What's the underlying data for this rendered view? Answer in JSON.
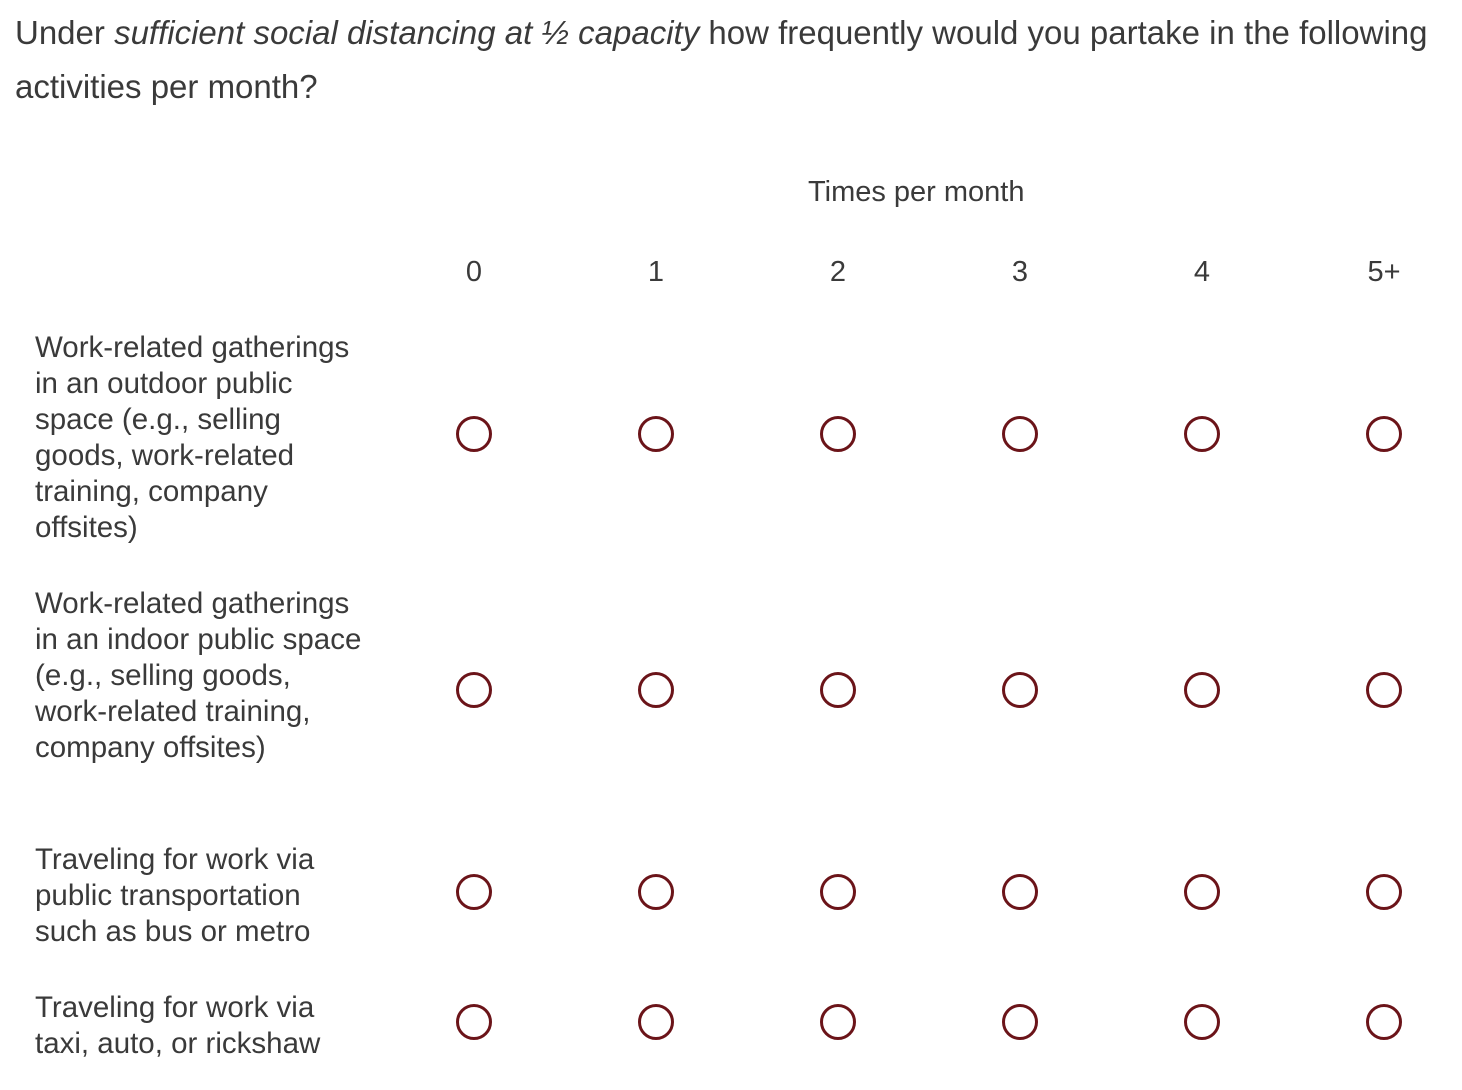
{
  "question": {
    "prefix": "Under ",
    "emphasis": "sufficient social distancing at ½ capacity",
    "suffix": " how frequently would you partake in the following activities per month?"
  },
  "scale_header": "Times per month",
  "columns": [
    "0",
    "1",
    "2",
    "3",
    "4",
    "5+"
  ],
  "rows": [
    {
      "label": "Work-related gatherings in an outdoor public space (e.g., selling goods, work-related training, company offsites)"
    },
    {
      "label": "Work-related gatherings in an indoor public space (e.g., selling goods, work-related training, company offsites)"
    },
    {
      "label": "Traveling for work via public transportation such as bus or metro"
    },
    {
      "label": "Traveling for work via taxi, auto, or rickshaw"
    }
  ],
  "colors": {
    "radio_border": "#6b1419",
    "text": "#3a3a3a"
  },
  "selected": [
    null,
    null,
    null,
    null
  ]
}
